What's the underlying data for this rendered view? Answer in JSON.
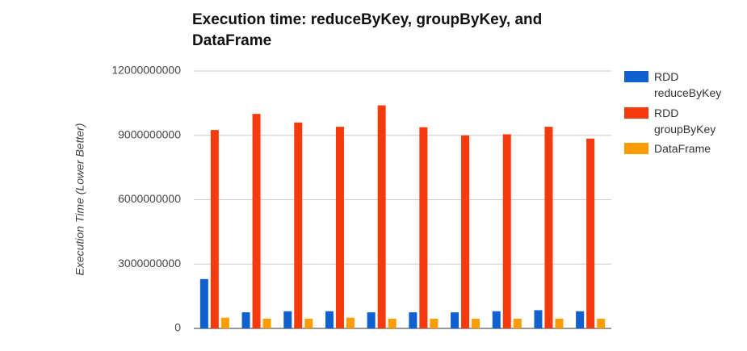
{
  "chart_data": {
    "type": "bar",
    "title": "Execution time: reduceByKey, groupByKey, and DataFrame",
    "y_label": "Execution Time (Lower Better)",
    "categories": [
      null,
      null,
      null,
      null,
      null,
      null,
      null,
      null,
      null,
      null
    ],
    "series": [
      {
        "name": "RDD reduceByKey",
        "color": "#1060d0",
        "values": [
          2300000000,
          750000000,
          800000000,
          800000000,
          750000000,
          750000000,
          750000000,
          800000000,
          850000000,
          800000000
        ]
      },
      {
        "name": "RDD groupByKey",
        "color": "#f53a0e",
        "values": [
          9250000000,
          10000000000,
          9600000000,
          9400000000,
          10400000000,
          9380000000,
          9000000000,
          9050000000,
          9400000000,
          8850000000
        ]
      },
      {
        "name": "DataFrame",
        "color": "#ff9c00",
        "values": [
          500000000,
          450000000,
          450000000,
          500000000,
          450000000,
          450000000,
          450000000,
          450000000,
          450000000,
          450000000
        ]
      }
    ],
    "ylim": [
      0,
      12000000000
    ],
    "yticks": [
      0,
      3000000000,
      6000000000,
      9000000000,
      12000000000
    ],
    "grid": true
  }
}
